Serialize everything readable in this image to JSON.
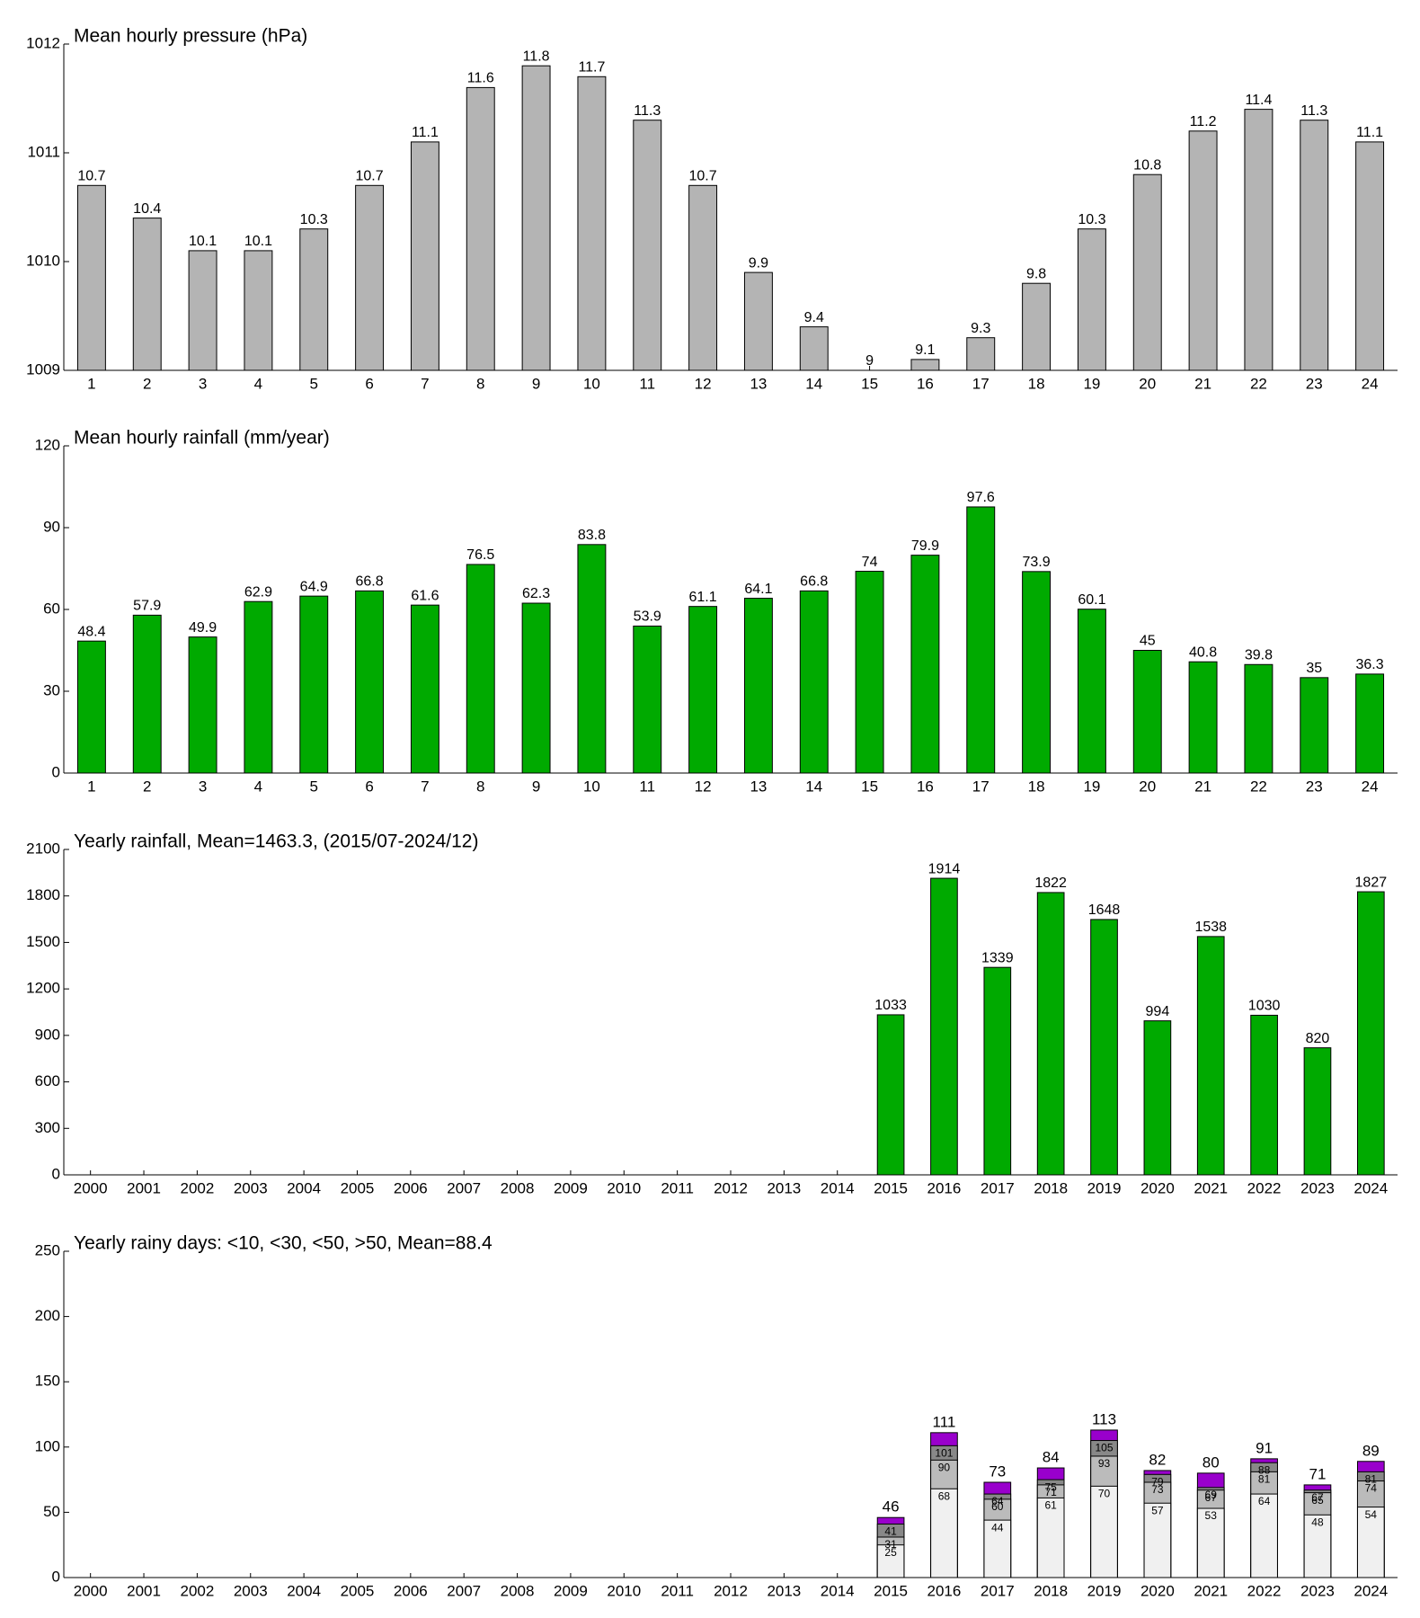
{
  "chart_data": [
    {
      "type": "bar",
      "title": "Mean hourly pressure (hPa)",
      "categories": [
        1,
        2,
        3,
        4,
        5,
        6,
        7,
        8,
        9,
        10,
        11,
        12,
        13,
        14,
        15,
        16,
        17,
        18,
        19,
        20,
        21,
        22,
        23,
        24
      ],
      "values": [
        1010.7,
        1010.4,
        1010.1,
        1010.1,
        1010.3,
        1010.7,
        1011.1,
        1011.6,
        1011.8,
        1011.7,
        1011.3,
        1010.7,
        1009.9,
        1009.4,
        1009.0,
        1009.1,
        1009.3,
        1009.8,
        1010.3,
        1010.8,
        1011.2,
        1011.4,
        1011.3,
        1011.1
      ],
      "value_labels": [
        "10.7",
        "10.4",
        "10.1",
        "10.1",
        "10.3",
        "10.7",
        "11.1",
        "11.6",
        "11.8",
        "11.7",
        "11.3",
        "10.7",
        "9.9",
        "9.4",
        "9",
        "9.1",
        "9.3",
        "9.8",
        "10.3",
        "10.8",
        "11.2",
        "11.4",
        "11.3",
        "11.1"
      ],
      "color": "#b4b4b4",
      "ylim": [
        1009,
        1012
      ],
      "yticks": [
        1009,
        1010,
        1011,
        1012
      ]
    },
    {
      "type": "bar",
      "title": "Mean hourly rainfall (mm/year)",
      "categories": [
        1,
        2,
        3,
        4,
        5,
        6,
        7,
        8,
        9,
        10,
        11,
        12,
        13,
        14,
        15,
        16,
        17,
        18,
        19,
        20,
        21,
        22,
        23,
        24
      ],
      "values": [
        48.4,
        57.9,
        49.9,
        62.9,
        64.9,
        66.8,
        61.6,
        76.5,
        62.3,
        83.8,
        53.9,
        61.1,
        64.1,
        66.8,
        74,
        79.9,
        97.6,
        73.9,
        60.1,
        45,
        40.8,
        39.8,
        35,
        36.3
      ],
      "color": "#00aa00",
      "ylim": [
        0,
        120
      ],
      "yticks": [
        0,
        30,
        60,
        90,
        120
      ]
    },
    {
      "type": "bar",
      "title": "Yearly rainfall, Mean=1463.3, (2015/07-2024/12)",
      "categories": [
        2000,
        2001,
        2002,
        2003,
        2004,
        2005,
        2006,
        2007,
        2008,
        2009,
        2010,
        2011,
        2012,
        2013,
        2014,
        2015,
        2016,
        2017,
        2018,
        2019,
        2020,
        2021,
        2022,
        2023,
        2024
      ],
      "values": [
        null,
        null,
        null,
        null,
        null,
        null,
        null,
        null,
        null,
        null,
        null,
        null,
        null,
        null,
        null,
        1033,
        1914,
        1339,
        1822,
        1648,
        994,
        1538,
        1030,
        820,
        1827
      ],
      "color": "#00aa00",
      "ylim": [
        0,
        2100
      ],
      "yticks": [
        0,
        300,
        600,
        900,
        1200,
        1500,
        1800,
        2100
      ]
    },
    {
      "type": "overlay-bar",
      "title": "Yearly rainy days: <10, <30, <50, >50, Mean=88.4",
      "categories": [
        2000,
        2001,
        2002,
        2003,
        2004,
        2005,
        2006,
        2007,
        2008,
        2009,
        2010,
        2011,
        2012,
        2013,
        2014,
        2015,
        2016,
        2017,
        2018,
        2019,
        2020,
        2021,
        2022,
        2023,
        2024
      ],
      "series": [
        {
          "color": "#f0f0f0",
          "values": [
            null,
            null,
            null,
            null,
            null,
            null,
            null,
            null,
            null,
            null,
            null,
            null,
            null,
            null,
            null,
            25,
            68,
            44,
            61,
            70,
            57,
            53,
            64,
            48,
            54
          ]
        },
        {
          "color": "#bbbbbb",
          "values": [
            null,
            null,
            null,
            null,
            null,
            null,
            null,
            null,
            null,
            null,
            null,
            null,
            null,
            null,
            null,
            31,
            90,
            60,
            71,
            93,
            73,
            67,
            81,
            65,
            74
          ]
        },
        {
          "color": "#888888",
          "values": [
            null,
            null,
            null,
            null,
            null,
            null,
            null,
            null,
            null,
            null,
            null,
            null,
            null,
            null,
            null,
            41,
            101,
            64,
            75,
            105,
            79,
            69,
            88,
            67,
            81
          ]
        },
        {
          "color": "#9900cc",
          "values": [
            null,
            null,
            null,
            null,
            null,
            null,
            null,
            null,
            null,
            null,
            null,
            null,
            null,
            null,
            null,
            46,
            111,
            73,
            84,
            113,
            82,
            80,
            91,
            71,
            89
          ]
        }
      ],
      "ylim": [
        0,
        250
      ],
      "yticks": [
        0,
        50,
        100,
        150,
        200,
        250
      ]
    }
  ]
}
